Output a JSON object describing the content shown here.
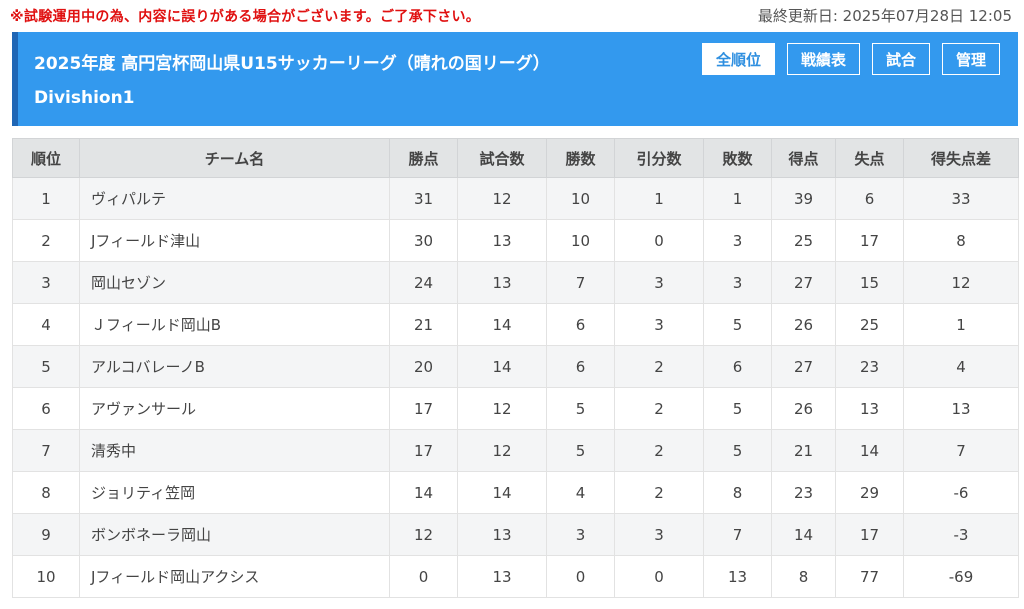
{
  "notice": "※試験運用中の為、内容に誤りがある場合がございます。ご了承下さい。",
  "last_updated": "最終更新日: 2025年07月28日 12:05",
  "header": {
    "title": "2025年度 高円宮杯岡山県U15サッカーリーグ（晴れの国リーグ）Divishion1",
    "nav": [
      "全順位",
      "戦績表",
      "試合",
      "管理"
    ],
    "active_nav": "全順位"
  },
  "table": {
    "columns": [
      "順位",
      "チーム名",
      "勝点",
      "試合数",
      "勝数",
      "引分数",
      "敗数",
      "得点",
      "失点",
      "得失点差"
    ],
    "rows": [
      [
        "1",
        "ヴィパルテ",
        "31",
        "12",
        "10",
        "1",
        "1",
        "39",
        "6",
        "33"
      ],
      [
        "2",
        "Jフィールド津山",
        "30",
        "13",
        "10",
        "0",
        "3",
        "25",
        "17",
        "8"
      ],
      [
        "3",
        "岡山セゾン",
        "24",
        "13",
        "7",
        "3",
        "3",
        "27",
        "15",
        "12"
      ],
      [
        "4",
        "Ｊフィールド岡山B",
        "21",
        "14",
        "6",
        "3",
        "5",
        "26",
        "25",
        "1"
      ],
      [
        "5",
        "アルコバレーノB",
        "20",
        "14",
        "6",
        "2",
        "6",
        "27",
        "23",
        "4"
      ],
      [
        "6",
        "アヴァンサール",
        "17",
        "12",
        "5",
        "2",
        "5",
        "26",
        "13",
        "13"
      ],
      [
        "7",
        "清秀中",
        "17",
        "12",
        "5",
        "2",
        "5",
        "21",
        "14",
        "7"
      ],
      [
        "8",
        "ジョリティ笠岡",
        "14",
        "14",
        "4",
        "2",
        "8",
        "23",
        "29",
        "-6"
      ],
      [
        "9",
        "ボンボネーラ岡山",
        "12",
        "13",
        "3",
        "3",
        "7",
        "14",
        "17",
        "-3"
      ],
      [
        "10",
        "Jフィールド岡山アクシス",
        "0",
        "13",
        "0",
        "0",
        "13",
        "8",
        "77",
        "-69"
      ]
    ]
  }
}
